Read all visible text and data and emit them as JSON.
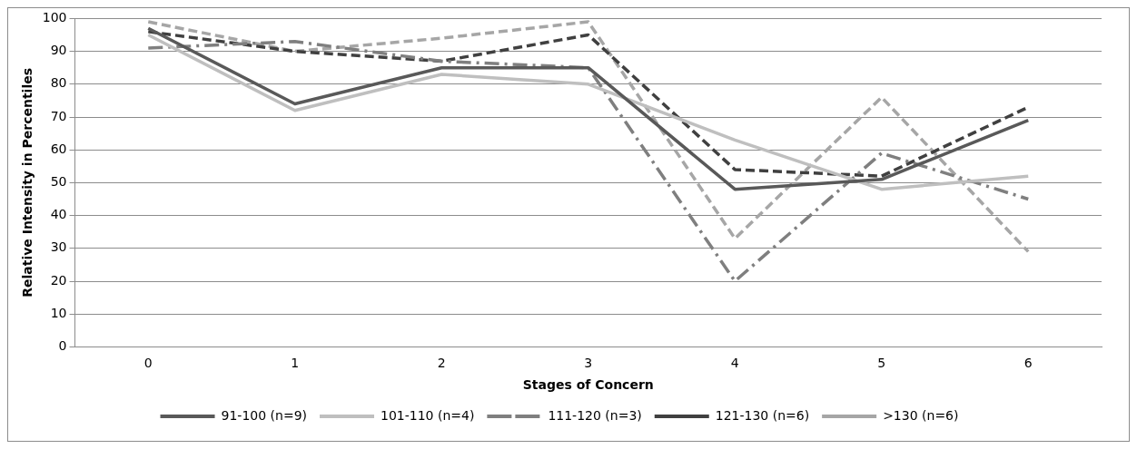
{
  "chart_data": {
    "type": "line",
    "xlabel": "Stages of Concern",
    "ylabel": "Relative Intensity in Percentiles",
    "categories": [
      "0",
      "1",
      "2",
      "3",
      "4",
      "5",
      "6"
    ],
    "ylim": [
      0,
      100
    ],
    "yticks": [
      0,
      10,
      20,
      30,
      40,
      50,
      60,
      70,
      80,
      90,
      100
    ],
    "grid": "y",
    "legend": "bottom",
    "marker": "none",
    "series": [
      {
        "name": "91-100 (n=9)",
        "color": "#595959",
        "line_style": "solid",
        "values": [
          97,
          74,
          85,
          85,
          48,
          51,
          69
        ]
      },
      {
        "name": "101-110 (n=4)",
        "color": "#bfbfbf",
        "line_style": "solid",
        "values": [
          95,
          72,
          83,
          80,
          63,
          48,
          52
        ]
      },
      {
        "name": "111-120 (n=3)",
        "color": "#7f7f7f",
        "line_style": "dashdot",
        "values": [
          91,
          93,
          87,
          85,
          20,
          59,
          45
        ]
      },
      {
        "name": "121-130 (n=6)",
        "color": "#404040",
        "line_style": "dashed",
        "values": [
          96,
          90,
          87,
          95,
          54,
          52,
          73
        ]
      },
      {
        "name": ">130 (n=6)",
        "color": "#a6a6a6",
        "line_style": "dashed",
        "values": [
          99,
          90,
          94,
          99,
          33,
          76,
          29
        ]
      }
    ]
  }
}
